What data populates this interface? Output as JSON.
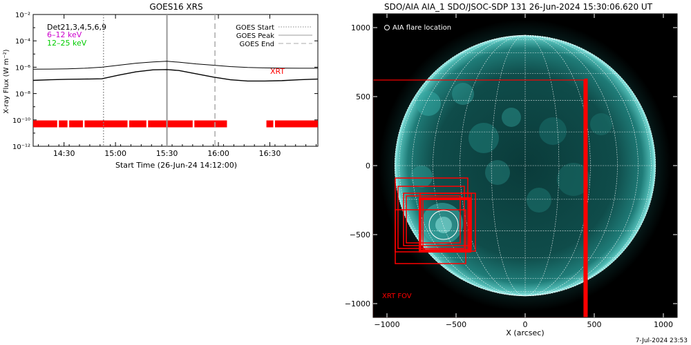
{
  "charts": [
    {
      "chart_data": {
        "type": "line",
        "title": "GOES16 XRS",
        "ylabel": "X-ray Flux (W m⁻²)",
        "xlabel": "Start Time (26-Jun-24 14:12:00)",
        "ylim_log10": [
          -12,
          -2
        ],
        "x_ticks": [
          "14:30",
          "15:00",
          "15:30",
          "16:00",
          "16:30"
        ],
        "y_ticks": [
          "10⁻¹²",
          "10⁻¹⁰",
          "10⁻⁸",
          "10⁻⁶",
          "10⁻⁴",
          "10⁻²"
        ],
        "x_ticks_minutes_after_start": [
          18,
          48,
          78,
          108,
          138
        ],
        "xlim_minutes_after_start": [
          0,
          166
        ],
        "detectors": "Det21,3,4,5,6,9",
        "bands": [
          {
            "label": "6–12 keV",
            "color": "#cc00cc"
          },
          {
            "label": "12–25 keV",
            "color": "#00cc00"
          }
        ],
        "markers": [
          {
            "label": "GOES Start",
            "minute": 41,
            "style": "dotted",
            "color": "#888888"
          },
          {
            "label": "GOES Peak",
            "minute": 78,
            "style": "solid",
            "color": "#999999"
          },
          {
            "label": "GOES End",
            "minute": 106,
            "style": "dashed",
            "color": "#aaaaaa"
          }
        ],
        "series": [
          {
            "name": "",
            "x": [
              0,
              10,
              20,
              30,
              40,
              50,
              60,
              70,
              78,
              85,
              95,
              105,
              115,
              125,
              135,
              145,
              155,
              166
            ],
            "log10_flux": [
              -6.15,
              -6.14,
              -6.12,
              -6.08,
              -6.0,
              -5.85,
              -5.7,
              -5.6,
              -5.55,
              -5.62,
              -5.75,
              -5.85,
              -5.95,
              -6.02,
              -6.05,
              -6.07,
              -6.08,
              -6.08
            ]
          },
          {
            "name": "",
            "x": [
              0,
              10,
              20,
              30,
              40,
              50,
              60,
              70,
              78,
              85,
              95,
              105,
              115,
              125,
              135,
              145,
              155,
              166
            ],
            "log10_flux": [
              -7.0,
              -6.95,
              -6.92,
              -6.9,
              -6.88,
              -6.6,
              -6.35,
              -6.2,
              -6.18,
              -6.25,
              -6.5,
              -6.75,
              -6.95,
              -7.05,
              -7.05,
              -7.02,
              -6.95,
              -6.9
            ]
          }
        ],
        "xrt_label": "XRT",
        "xrt_color": "#ff0000",
        "xrt_log10_level": -10.3,
        "xrt_coverage_minutes": [
          [
            0,
            14
          ],
          [
            15,
            20
          ],
          [
            21,
            29
          ],
          [
            30,
            55
          ],
          [
            56,
            66
          ],
          [
            67,
            93
          ],
          [
            94,
            113
          ],
          [
            136,
            140
          ],
          [
            141,
            166
          ]
        ]
      }
    },
    {
      "chart_data": {
        "type": "scatter",
        "title": "SDO/AIA AIA_1 SDO/JSOC-SDP 131 26-Jun-2024 15:30:06.620 UT",
        "xlabel": "X (arcsec)",
        "ylabel": "",
        "xlim": [
          -1100,
          1100
        ],
        "ylim": [
          -1100,
          1100
        ],
        "x_ticks": [
          "−1000",
          "−500",
          "0",
          "500",
          "1000"
        ],
        "y_ticks": [
          "−1000",
          "−500",
          "0",
          "500",
          "1000"
        ],
        "solar_radius_arcsec": 944,
        "flare_location_label": "AIA flare location",
        "flare_location": {
          "x": -590,
          "y": -430,
          "radius": 105
        },
        "fov_label": "XRT FOV",
        "fov_color": "#ff0000",
        "xrt_fov_boxes": [
          {
            "x": [
              -1100,
              425
            ],
            "y": [
              -1100,
              620
            ],
            "note": ""
          },
          {
            "x": [
              -940,
              -415
            ],
            "y": [
              -625,
              -90
            ],
            "note": ""
          },
          {
            "x": [
              -920,
              -440
            ],
            "y": [
              -600,
              -150
            ],
            "note": ""
          },
          {
            "x": [
              -880,
              -390
            ],
            "y": [
              -580,
              -200
            ],
            "note": ""
          },
          {
            "x": [
              -860,
              -470
            ],
            "y": [
              -560,
              -220
            ],
            "note": ""
          },
          {
            "x": [
              -940,
              -430
            ],
            "y": [
              -710,
              -320
            ],
            "note": ""
          },
          {
            "x": [
              -760,
              -360
            ],
            "y": [
              -620,
              -200
            ],
            "note": ""
          },
          {
            "x": [
              -740,
              -390
            ],
            "y": [
              -610,
              -240
            ],
            "note": ""
          }
        ],
        "xrt_thick_lines": [
          {
            "x1": 440,
            "y1": 630,
            "x2": 440,
            "y2": -1100
          }
        ]
      }
    }
  ],
  "footer": {
    "timestamp": "7-Jul-2024 23:53"
  }
}
